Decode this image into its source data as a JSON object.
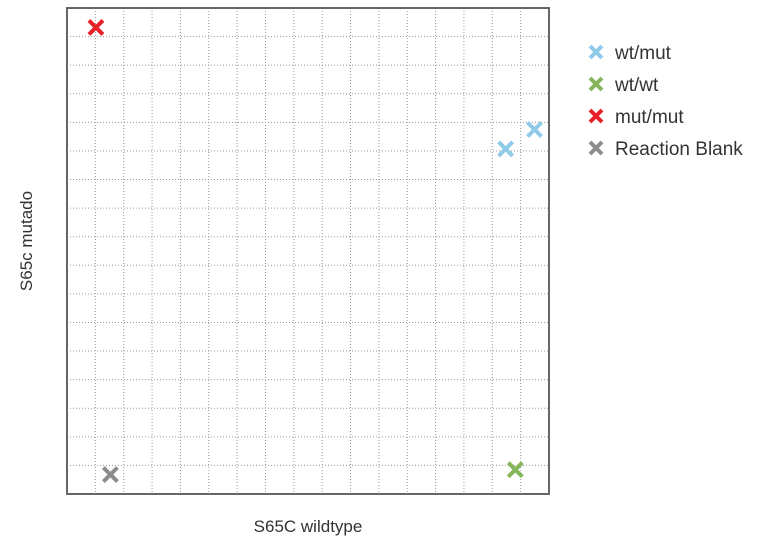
{
  "chart_data": {
    "type": "scatter",
    "title": "",
    "xlabel": "S65C wildtype",
    "ylabel": "S65c mutado",
    "xlim": [
      0,
      1
    ],
    "ylim": [
      0,
      1
    ],
    "grid": true,
    "legend_position": "top-right",
    "series": [
      {
        "name": "wt/mut",
        "color": "#8fcbe8",
        "points": [
          [
            0.91,
            0.71
          ],
          [
            0.97,
            0.75
          ]
        ]
      },
      {
        "name": "wt/wt",
        "color": "#86b55a",
        "points": [
          [
            0.93,
            0.05
          ]
        ]
      },
      {
        "name": "mut/mut",
        "color": "#e8202a",
        "points": [
          [
            0.06,
            0.96
          ]
        ]
      },
      {
        "name": "Reaction Blank",
        "color": "#8c8c8c",
        "points": [
          [
            0.09,
            0.04
          ]
        ]
      }
    ]
  }
}
